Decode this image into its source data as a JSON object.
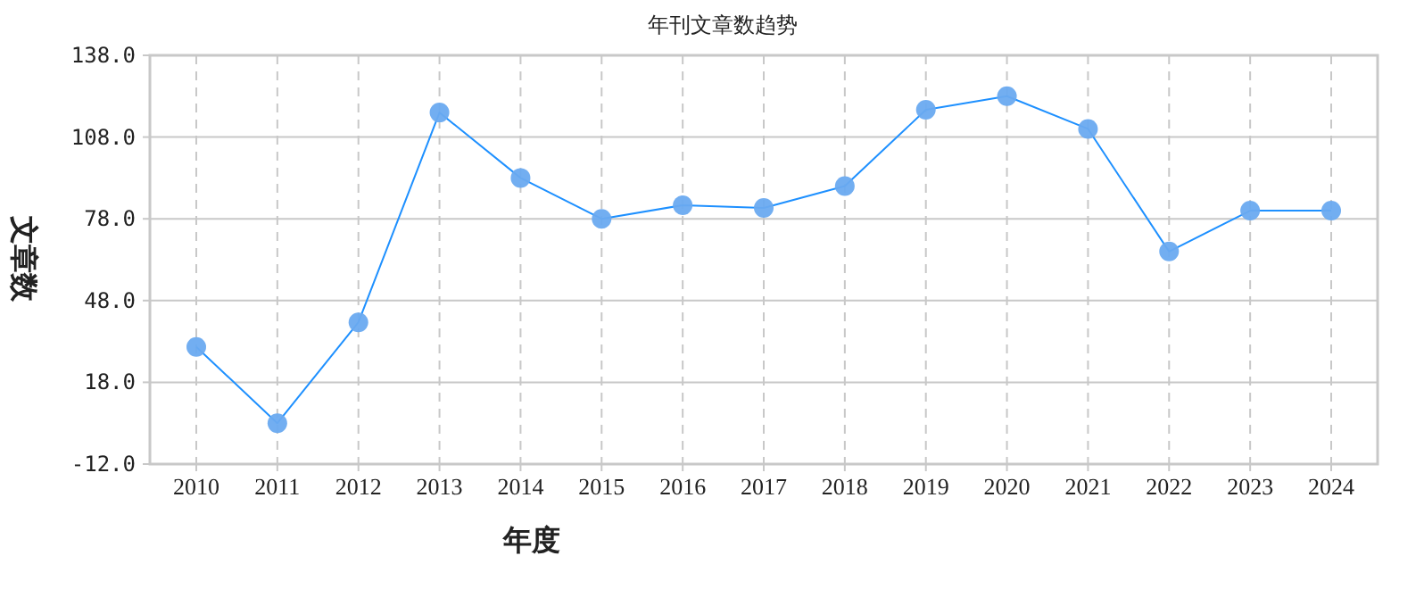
{
  "chart_data": {
    "type": "line",
    "title": "年刊文章数趋势",
    "xlabel": "年度",
    "ylabel": "文章数",
    "categories": [
      "2010",
      "2011",
      "2012",
      "2013",
      "2014",
      "2015",
      "2016",
      "2017",
      "2018",
      "2019",
      "2020",
      "2021",
      "2022",
      "2023",
      "2024"
    ],
    "series": [
      {
        "color": "#1e90ff",
        "values": [
          31,
          3,
          40,
          117,
          93,
          78,
          83,
          82,
          90,
          118,
          123,
          111,
          66,
          81,
          81
        ]
      }
    ],
    "ylim": [
      -12,
      138
    ],
    "yticks": [
      {
        "value": -12,
        "label": "-12.0"
      },
      {
        "value": 18,
        "label": "18.0"
      },
      {
        "value": 48,
        "label": "48.0"
      },
      {
        "value": 78,
        "label": "78.0"
      },
      {
        "value": 108,
        "label": "108.0"
      },
      {
        "value": 138,
        "label": "138.0"
      }
    ],
    "grid": true,
    "marker": "circle",
    "line_style": "solid"
  }
}
